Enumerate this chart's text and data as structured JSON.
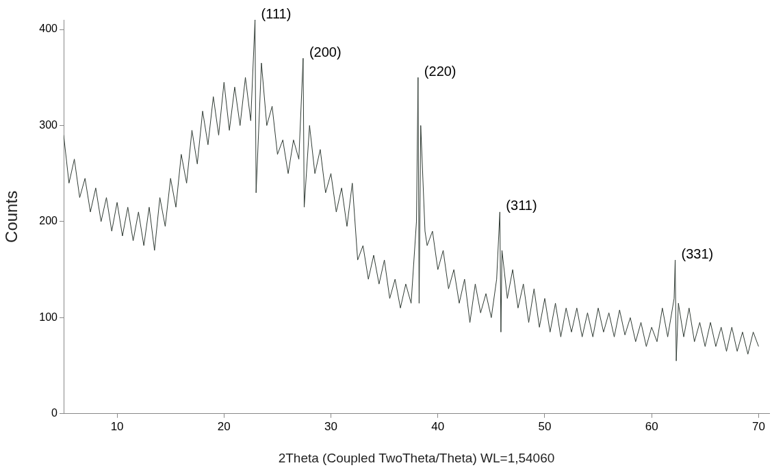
{
  "chart_data": {
    "type": "line",
    "xlabel": "2Theta (Coupled TwoTheta/Theta) WL=1,54060",
    "ylabel": "Counts",
    "xlim": [
      5,
      71
    ],
    "xticks": [
      10,
      20,
      30,
      40,
      50,
      60,
      70
    ],
    "ylim": [
      0,
      410
    ],
    "yticks": [
      0,
      100,
      200,
      300,
      400
    ],
    "grid": false,
    "legend": false,
    "marker": "none",
    "line_style": "solid",
    "series": [
      {
        "color": "#2f3a33",
        "x": [
          5,
          5.5,
          6,
          6.5,
          7,
          7.5,
          8,
          8.5,
          9,
          9.5,
          10,
          10.5,
          11,
          11.5,
          12,
          12.5,
          13,
          13.5,
          14,
          14.5,
          15,
          15.5,
          16,
          16.5,
          17,
          17.5,
          18,
          18.5,
          19,
          19.5,
          20,
          20.5,
          21,
          21.5,
          22,
          22.5,
          22.9,
          23.0,
          23.5,
          24,
          24.5,
          25,
          25.5,
          26,
          26.5,
          27,
          27.4,
          27.5,
          28,
          28.5,
          29,
          29.5,
          30,
          30.5,
          31,
          31.5,
          32,
          32.5,
          33,
          33.5,
          34,
          34.5,
          35,
          35.5,
          36,
          36.5,
          37,
          37.5,
          38,
          38.15,
          38.25,
          38.4,
          38.8,
          39,
          39.5,
          40,
          40.5,
          41,
          41.5,
          42,
          42.5,
          43,
          43.5,
          44,
          44.5,
          45,
          45.5,
          45.8,
          45.9,
          46,
          46.5,
          47,
          47.5,
          48,
          48.5,
          49,
          49.5,
          50,
          50.5,
          51,
          51.5,
          52,
          52.5,
          53,
          53.5,
          54,
          54.5,
          55,
          55.5,
          56,
          56.5,
          57,
          57.5,
          58,
          58.5,
          59,
          59.5,
          60,
          60.5,
          61,
          61.5,
          62.1,
          62.2,
          62.3,
          62.5,
          63,
          63.5,
          64,
          64.5,
          65,
          65.5,
          66,
          66.5,
          67,
          67.5,
          68,
          68.5,
          69,
          69.5,
          70
        ],
        "values": [
          290,
          240,
          265,
          225,
          245,
          210,
          235,
          200,
          225,
          190,
          220,
          185,
          215,
          180,
          210,
          175,
          215,
          170,
          225,
          195,
          245,
          215,
          270,
          240,
          295,
          260,
          315,
          280,
          330,
          290,
          345,
          295,
          340,
          300,
          350,
          305,
          410,
          230,
          365,
          300,
          320,
          270,
          285,
          250,
          285,
          265,
          370,
          215,
          300,
          250,
          275,
          230,
          250,
          210,
          235,
          195,
          240,
          160,
          175,
          140,
          165,
          135,
          160,
          120,
          140,
          110,
          135,
          115,
          200,
          350,
          115,
          300,
          190,
          175,
          190,
          150,
          170,
          130,
          150,
          115,
          140,
          95,
          135,
          105,
          125,
          100,
          140,
          210,
          85,
          170,
          120,
          150,
          110,
          135,
          95,
          130,
          90,
          120,
          85,
          115,
          80,
          110,
          85,
          110,
          80,
          105,
          80,
          110,
          85,
          105,
          80,
          108,
          82,
          100,
          75,
          95,
          70,
          90,
          75,
          110,
          80,
          120,
          160,
          55,
          115,
          80,
          110,
          75,
          95,
          70,
          95,
          70,
          90,
          65,
          90,
          65,
          85,
          62,
          85,
          70
        ]
      }
    ],
    "annotations": [
      {
        "text": "(111)",
        "x": 22.9,
        "y": 410
      },
      {
        "text": "(200)",
        "x": 27.4,
        "y": 370
      },
      {
        "text": "(220)",
        "x": 38.15,
        "y": 350
      },
      {
        "text": "(311)",
        "x": 45.8,
        "y": 210
      },
      {
        "text": "(331)",
        "x": 62.2,
        "y": 160
      }
    ]
  }
}
